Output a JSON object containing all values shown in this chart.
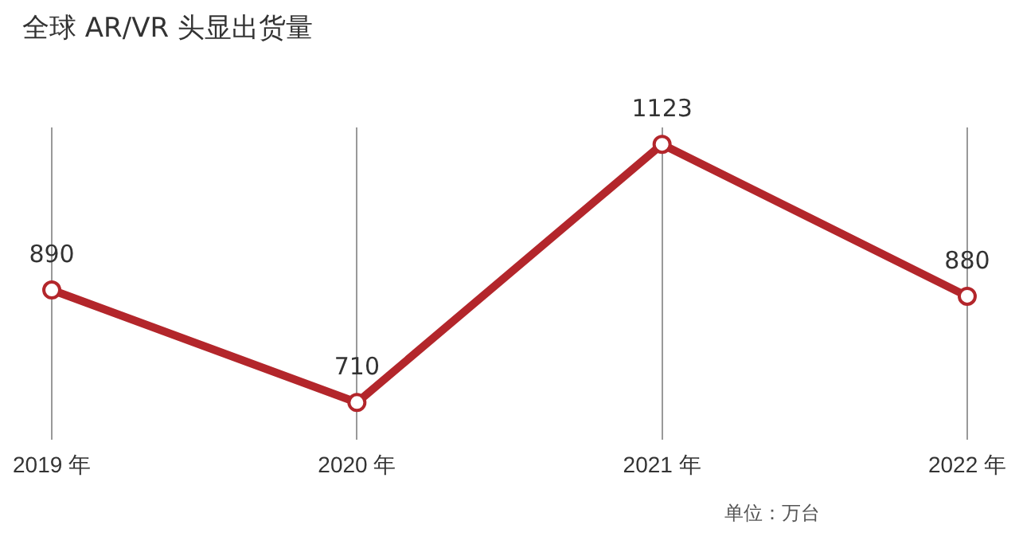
{
  "chart_data": {
    "type": "line",
    "title": "全球 AR/VR 头显出货量",
    "categories": [
      "2019 年",
      "2020 年",
      "2021 年",
      "2022 年"
    ],
    "series": [
      {
        "color": "#b3262b",
        "values": [
          890,
          710,
          1123,
          880
        ]
      }
    ],
    "data_labels": true,
    "marker": "circle",
    "line_style": "solid",
    "grid": "x",
    "legend": false,
    "annotations": [
      "单位：万台"
    ]
  }
}
